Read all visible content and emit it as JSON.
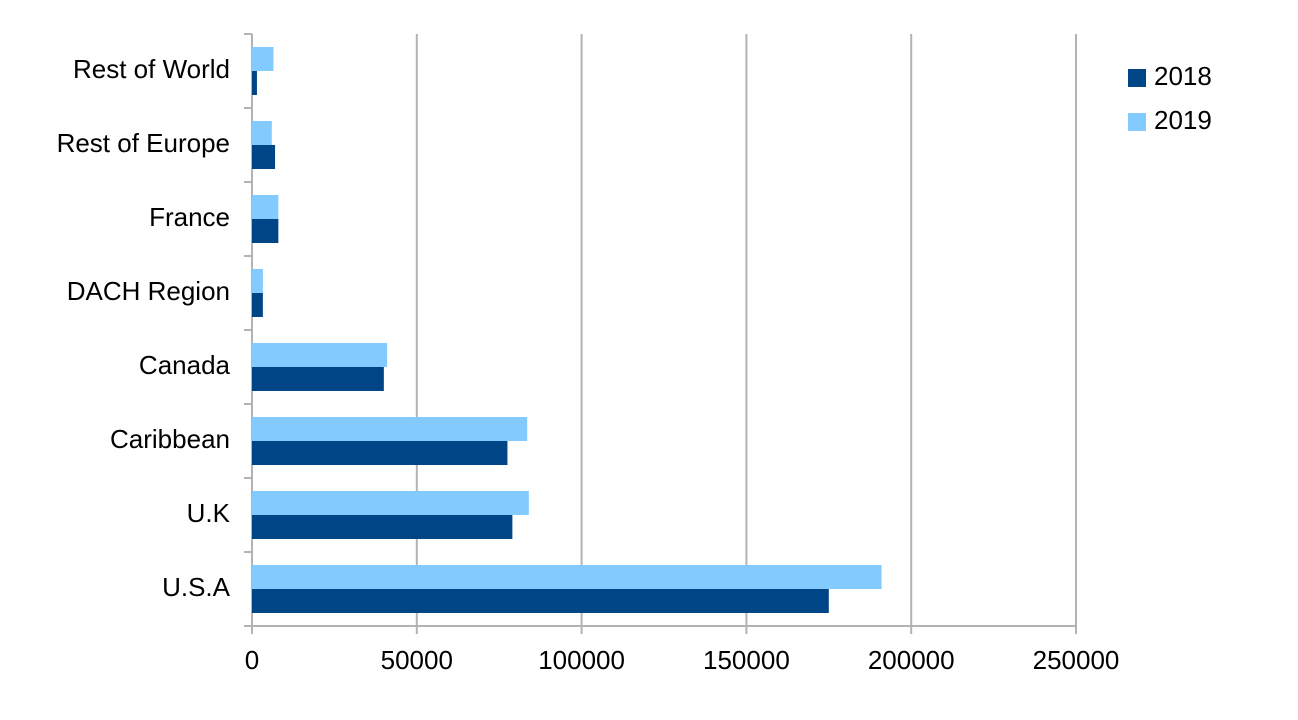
{
  "chart_data": {
    "type": "hbar",
    "categories": [
      "U.S.A",
      "U.K",
      "Caribbean",
      "Canada",
      "DACH Region",
      "France",
      "Rest of Europe",
      "Rest of World"
    ],
    "series": [
      {
        "name": "2018",
        "color": "#004586",
        "values": [
          175000,
          79000,
          77500,
          40000,
          3300,
          8000,
          7000,
          1500
        ]
      },
      {
        "name": "2019",
        "color": "#83caff",
        "values": [
          191000,
          84000,
          83500,
          41000,
          3300,
          8000,
          6000,
          6500
        ]
      }
    ],
    "xlim": [
      0,
      250000
    ],
    "xticks": [
      0,
      50000,
      100000,
      150000,
      200000,
      250000
    ],
    "grid": true,
    "legend": "right"
  }
}
